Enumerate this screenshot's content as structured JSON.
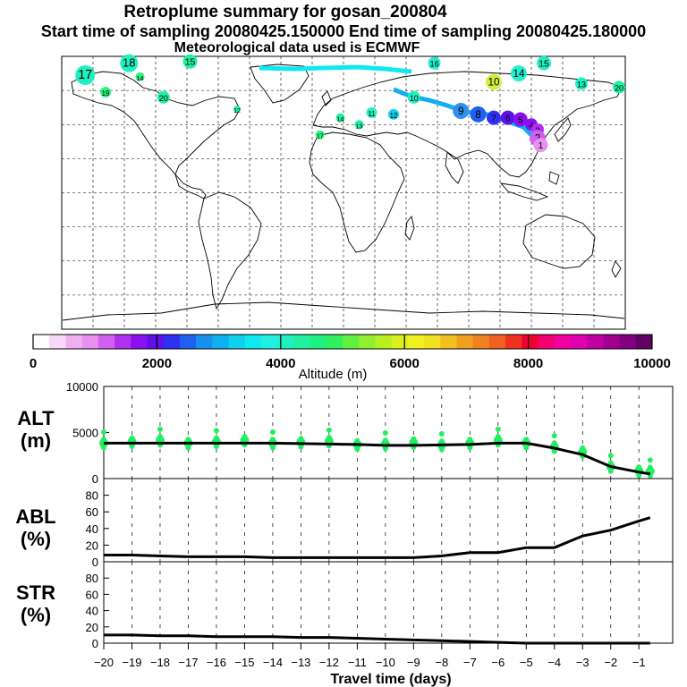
{
  "header": {
    "title": "Retroplume summary for gosan_200804",
    "sampling_line": "Start time of sampling 20080425.150000     End time of sampling 20080425.180000",
    "met_line": "Meteorological data used is ECMWF"
  },
  "colorbar": {
    "ticks": [
      "0",
      "2000",
      "4000",
      "6000",
      "8000",
      "10000"
    ],
    "label": "Altitude (m)",
    "colors": [
      "#ffffff",
      "#f8d8f8",
      "#f0b0f0",
      "#e890f0",
      "#d060f0",
      "#b030f0",
      "#8a10f0",
      "#6010e8",
      "#3030f0",
      "#2060f0",
      "#1890f0",
      "#10b0f0",
      "#10d0f0",
      "#10e8f0",
      "#20f0e0",
      "#20f0c0",
      "#20f0a0",
      "#20f080",
      "#30f060",
      "#60f040",
      "#90f030",
      "#b8f020",
      "#d8f020",
      "#f0f020",
      "#f0e020",
      "#f0c020",
      "#f0a020",
      "#f08020",
      "#f06020",
      "#f03020",
      "#f00030",
      "#f00070",
      "#f000a0",
      "#e000b0",
      "#c000a0",
      "#a00090",
      "#800080",
      "#600060"
    ]
  },
  "map": {
    "clusters": [
      {
        "label": "17",
        "lon": -165,
        "lat": 69,
        "r": 11,
        "color": "#20f0c0"
      },
      {
        "label": "18",
        "lon": -137,
        "lat": 76,
        "r": 10,
        "color": "#20f0c0"
      },
      {
        "label": "14",
        "lon": -130,
        "lat": 68,
        "r": 5,
        "color": "#30f080"
      },
      {
        "label": "15",
        "lon": -98,
        "lat": 77,
        "r": 8,
        "color": "#20f0a0"
      },
      {
        "label": "19",
        "lon": -152,
        "lat": 59,
        "r": 6,
        "color": "#30f080"
      },
      {
        "label": "20",
        "lon": -115,
        "lat": 56,
        "r": 7,
        "color": "#20f0a0"
      },
      {
        "label": "16",
        "lon": 58,
        "lat": 76,
        "r": 7,
        "color": "#20f0d0"
      },
      {
        "label": "10",
        "lon": 96,
        "lat": 65,
        "r": 9,
        "color": "#d0f040"
      },
      {
        "label": "14",
        "lon": 112,
        "lat": 70,
        "r": 9,
        "color": "#20f0d0"
      },
      {
        "label": "15",
        "lon": 128,
        "lat": 76,
        "r": 8,
        "color": "#20f0c0"
      },
      {
        "label": "13",
        "lon": 152,
        "lat": 64,
        "r": 7,
        "color": "#20f0c0"
      },
      {
        "label": "20",
        "lon": 176,
        "lat": 62,
        "r": 7,
        "color": "#20f0a0"
      },
      {
        "label": "9",
        "lon": 75,
        "lat": 48,
        "r": 9,
        "color": "#3090f0"
      },
      {
        "label": "8",
        "lon": 86,
        "lat": 46,
        "r": 9,
        "color": "#2060f0"
      },
      {
        "label": "7",
        "lon": 96,
        "lat": 44,
        "r": 8,
        "color": "#3030f0"
      },
      {
        "label": "6",
        "lon": 105,
        "lat": 44,
        "r": 8,
        "color": "#6010e8"
      },
      {
        "label": "5",
        "lon": 113,
        "lat": 43,
        "r": 8,
        "color": "#8a10f0"
      },
      {
        "label": "4",
        "lon": 120,
        "lat": 40,
        "r": 7,
        "color": "#8a10f0"
      },
      {
        "label": "3",
        "lon": 124,
        "lat": 37,
        "r": 7,
        "color": "#b030f0"
      },
      {
        "label": "2",
        "lon": 124,
        "lat": 32,
        "r": 9,
        "color": "#d060f0"
      },
      {
        "label": "1",
        "lon": 126,
        "lat": 28,
        "r": 8,
        "color": "#e890f0"
      },
      {
        "label": "11",
        "lon": 18,
        "lat": 47,
        "r": 6,
        "color": "#20f0c0"
      },
      {
        "label": "12",
        "lon": 32,
        "lat": 46,
        "r": 6,
        "color": "#10d0f0"
      },
      {
        "label": "13",
        "lon": 10,
        "lat": 40,
        "r": 5,
        "color": "#20f0a0"
      },
      {
        "label": "14",
        "lon": -2,
        "lat": 44,
        "r": 5,
        "color": "#20f0a0"
      },
      {
        "label": "17",
        "lon": -15,
        "lat": 34,
        "r": 5,
        "color": "#30f080"
      },
      {
        "label": "12",
        "lon": -68,
        "lat": 49,
        "r": 4,
        "color": "#20f0a0"
      },
      {
        "label": "10",
        "lon": 45,
        "lat": 56,
        "r": 7,
        "color": "#20f0c0"
      }
    ]
  },
  "panels": {
    "alt": {
      "label_main": "ALT",
      "label_unit": "(m)",
      "yticks": [
        "10000",
        "5000",
        "0"
      ]
    },
    "abl": {
      "label_main": "ABL",
      "label_unit": "(%)",
      "yticks": [
        "80",
        "60",
        "40",
        "20",
        "0"
      ]
    },
    "str": {
      "label_main": "STR",
      "label_unit": "(%)",
      "yticks": [
        "80",
        "60",
        "40",
        "20",
        "0"
      ]
    }
  },
  "xaxis": {
    "ticks": [
      "−20",
      "−19",
      "−18",
      "−17",
      "−16",
      "−15",
      "−14",
      "−13",
      "−12",
      "−11",
      "−10",
      "−9",
      "−8",
      "−7",
      "−6",
      "−5",
      "−4",
      "−3",
      "−2",
      "−1"
    ],
    "label": "Travel time (days)"
  },
  "chart_data": [
    {
      "type": "line",
      "title": "ALT",
      "xlabel": "Travel time (days)",
      "ylabel": "ALT (m)",
      "ylim": [
        0,
        10000
      ],
      "x": [
        -20,
        -19,
        -18,
        -17,
        -16,
        -15,
        -14,
        -13,
        -12,
        -11,
        -10,
        -9,
        -8,
        -7,
        -6,
        -5,
        -4,
        -3,
        -2,
        -1,
        -0.6
      ],
      "values": [
        3850,
        3850,
        3850,
        3850,
        3850,
        3850,
        3850,
        3800,
        3750,
        3700,
        3600,
        3600,
        3650,
        3700,
        3850,
        3850,
        3300,
        2600,
        1300,
        700,
        500
      ],
      "scatter_color": "#20f060"
    },
    {
      "type": "line",
      "title": "ABL",
      "ylabel": "ABL (%)",
      "ylim": [
        0,
        100
      ],
      "x": [
        -20,
        -19,
        -18,
        -17,
        -16,
        -15,
        -14,
        -13,
        -12,
        -11,
        -10,
        -9,
        -8,
        -7,
        -6,
        -5,
        -4,
        -3,
        -2,
        -1,
        -0.6
      ],
      "values": [
        8,
        8,
        7,
        6,
        6,
        6,
        5,
        5,
        5,
        5,
        5,
        5,
        7,
        11,
        11,
        17,
        17,
        31,
        38,
        49,
        53
      ]
    },
    {
      "type": "line",
      "title": "STR",
      "ylabel": "STR (%)",
      "ylim": [
        0,
        100
      ],
      "x": [
        -20,
        -19,
        -18,
        -17,
        -16,
        -15,
        -14,
        -13,
        -12,
        -11,
        -10,
        -9,
        -8,
        -7,
        -6,
        -5,
        -4,
        -3,
        -2,
        -1,
        -0.6
      ],
      "values": [
        10,
        10,
        9,
        9,
        8,
        8,
        8,
        7,
        7,
        6,
        5,
        4,
        3,
        2,
        1,
        0,
        0,
        0,
        0,
        0,
        0
      ]
    }
  ]
}
